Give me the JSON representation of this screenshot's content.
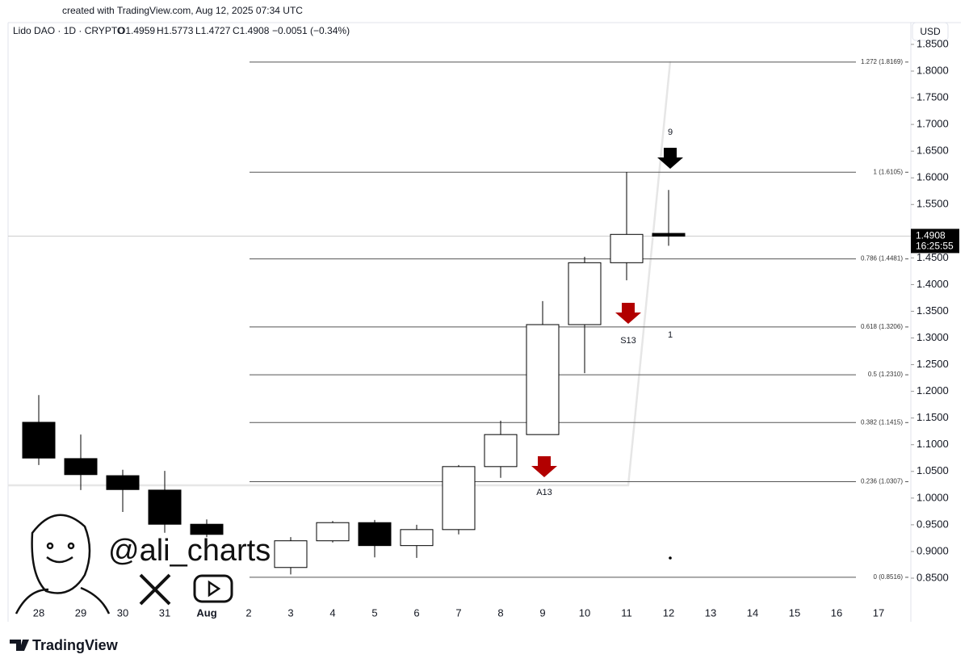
{
  "header": {
    "created": "created with TradingView.com, Aug 12, 2025 07:34 UTC",
    "symbol": "Lido DAO · 1D · CRYPTO",
    "open": "O1.4959",
    "high": "H1.5773",
    "low": "L1.4727",
    "close": "C1.4908",
    "change": "−0.0051 (−0.34%)",
    "currency": "USD"
  },
  "watermark": "@ali_charts",
  "footer": "TradingView",
  "chart_data": {
    "type": "candlestick",
    "categories": [
      "28",
      "29",
      "30",
      "31",
      "Aug",
      "2",
      "3",
      "4",
      "5",
      "6",
      "7",
      "8",
      "9",
      "10",
      "11",
      "12",
      "13",
      "14",
      "15",
      "16",
      "17"
    ],
    "series": {
      "open": [
        1.142,
        1.074,
        1.042,
        1.015,
        0.951,
        null,
        0.87,
        0.92,
        0.954,
        0.911,
        0.941,
        1.059,
        1.119,
        1.325,
        1.441,
        1.4959,
        null,
        null,
        null,
        null,
        null
      ],
      "high": [
        1.193,
        1.119,
        1.053,
        1.051,
        0.96,
        null,
        0.927,
        0.957,
        0.959,
        0.95,
        1.062,
        1.145,
        1.369,
        1.452,
        1.611,
        1.5773,
        null,
        null,
        null,
        null,
        null
      ],
      "low": [
        1.062,
        1.015,
        0.974,
        0.935,
        0.927,
        null,
        0.857,
        0.917,
        0.889,
        0.888,
        0.932,
        1.038,
        1.119,
        1.234,
        1.408,
        1.4727,
        null,
        null,
        null,
        null,
        null
      ],
      "close": [
        1.075,
        1.044,
        1.016,
        0.951,
        0.932,
        null,
        0.92,
        0.954,
        0.911,
        0.941,
        1.059,
        1.119,
        1.325,
        1.441,
        1.494,
        1.4908,
        null,
        null,
        null,
        null,
        null
      ]
    },
    "up_color": "#ffffff",
    "down_color": "#000000",
    "ylim": [
      0.8061,
      1.8908
    ],
    "yticks": [
      {
        "value": 0.85,
        "label": "0.8500"
      },
      {
        "value": 0.9,
        "label": "0.9000"
      },
      {
        "value": 0.95,
        "label": "0.9500"
      },
      {
        "value": 1.0,
        "label": "1.0000"
      },
      {
        "value": 1.05,
        "label": "1.0500"
      },
      {
        "value": 1.1,
        "label": "1.1000"
      },
      {
        "value": 1.15,
        "label": "1.1500"
      },
      {
        "value": 1.2,
        "label": "1.2000"
      },
      {
        "value": 1.25,
        "label": "1.2500"
      },
      {
        "value": 1.3,
        "label": "1.3000"
      },
      {
        "value": 1.35,
        "label": "1.3500"
      },
      {
        "value": 1.4,
        "label": "1.4000"
      },
      {
        "value": 1.45,
        "label": "1.4500"
      },
      {
        "value": 1.55,
        "label": "1.5500"
      },
      {
        "value": 1.6,
        "label": "1.6000"
      },
      {
        "value": 1.65,
        "label": "1.6500"
      },
      {
        "value": 1.7,
        "label": "1.7000"
      },
      {
        "value": 1.75,
        "label": "1.7500"
      },
      {
        "value": 1.8,
        "label": "1.8000"
      },
      {
        "value": 1.85,
        "label": "1.8500"
      }
    ],
    "fib_levels": [
      {
        "value": 1.8169,
        "label": "1.272 (1.8169)"
      },
      {
        "value": 1.6105,
        "label": "1 (1.6105)"
      },
      {
        "value": 1.4481,
        "label": "0.786 (1.4481)"
      },
      {
        "value": 1.3206,
        "label": "0.618 (1.3206)"
      },
      {
        "value": 1.231,
        "label": "0.5 (1.2310)"
      },
      {
        "value": 1.1415,
        "label": "0.382 (1.1415)"
      },
      {
        "value": 1.0307,
        "label": "0.236 (1.0307)"
      },
      {
        "value": 0.8516,
        "label": "0 (0.8516)"
      }
    ],
    "last_price": {
      "value": 1.4908,
      "label": "1.4908",
      "countdown": "16:25:55"
    },
    "annotations": [
      {
        "text": "9",
        "color": "#22ab55"
      },
      {
        "text": "1",
        "color": "#22ab55"
      },
      {
        "text": "S13",
        "color": "#f5a623"
      },
      {
        "text": "A13",
        "color": "#2196c9"
      }
    ]
  }
}
